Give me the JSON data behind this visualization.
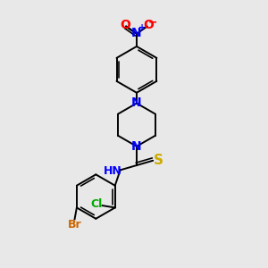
{
  "background_color": "#e8e8e8",
  "atom_colors": {
    "C": "#000000",
    "N": "#0000ff",
    "O": "#ff0000",
    "S": "#ccaa00",
    "Br": "#cc6600",
    "Cl": "#00aa00",
    "H": "#000000"
  },
  "bond_color": "#000000",
  "font_size": 9
}
